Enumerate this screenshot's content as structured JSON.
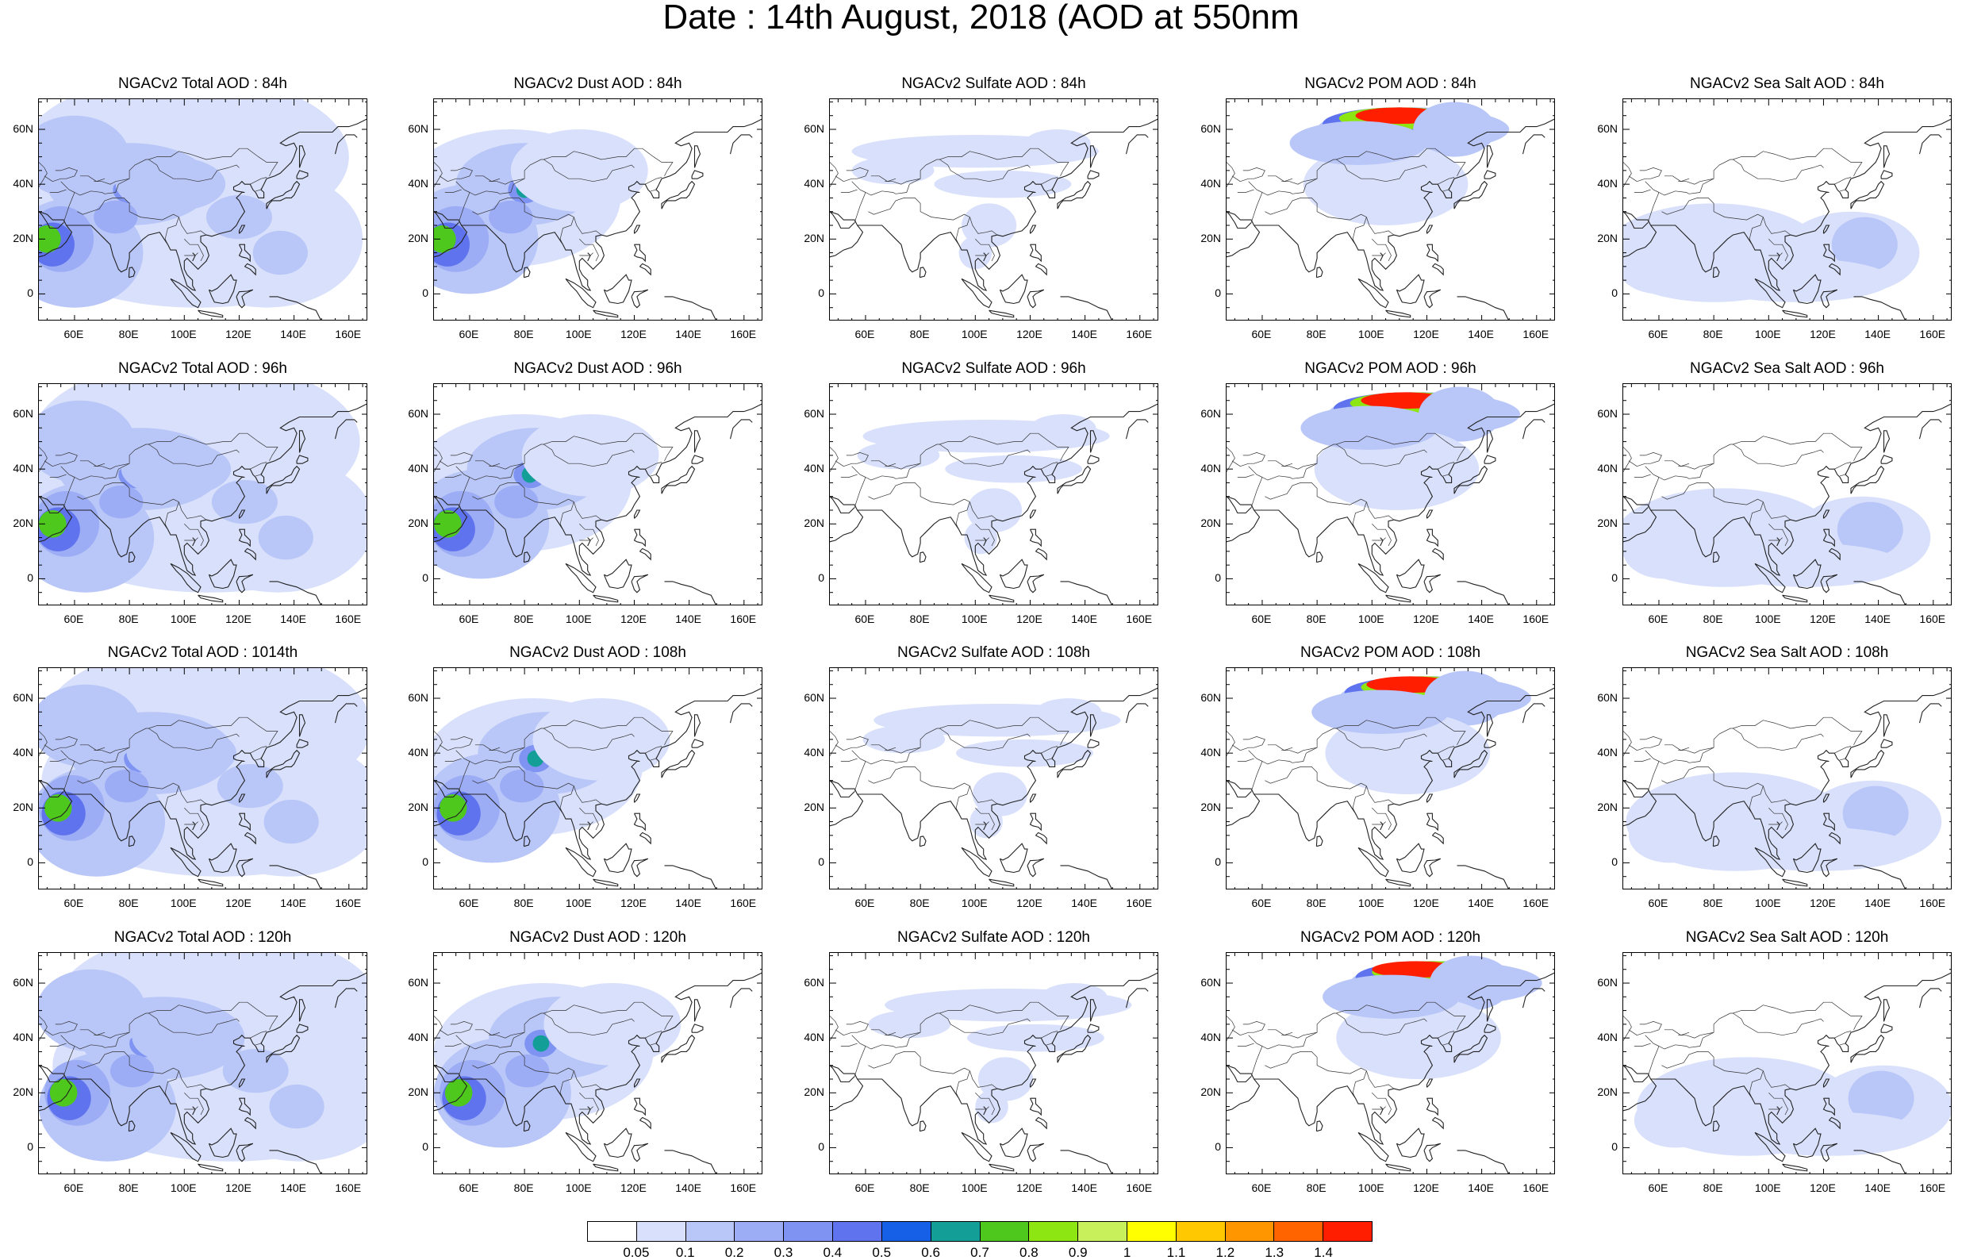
{
  "title": "Date : 14th August, 2018 (AOD at 550nm",
  "panels": [
    [
      "NGACv2 Total AOD : 84h",
      "NGACv2 Dust AOD : 84h",
      "NGACv2 Sulfate AOD : 84h",
      "NGACv2 POM AOD : 84h",
      "NGACv2 Sea Salt AOD : 84h"
    ],
    [
      "NGACv2 Total AOD : 96h",
      "NGACv2 Dust AOD : 96h",
      "NGACv2 Sulfate AOD : 96h",
      "NGACv2 POM AOD : 96h",
      "NGACv2 Sea Salt AOD : 96h"
    ],
    [
      "NGACv2 Total AOD : 1014th",
      "NGACv2 Dust AOD : 108h",
      "NGACv2 Sulfate AOD : 108h",
      "NGACv2 POM AOD : 108h",
      "NGACv2 Sea Salt AOD : 108h"
    ],
    [
      "NGACv2 Total AOD : 120h",
      "NGACv2 Dust AOD : 120h",
      "NGACv2 Sulfate AOD : 120h",
      "NGACv2 POM AOD : 120h",
      "NGACv2 Sea Salt  AOD : 120h"
    ]
  ],
  "lat_labels": [
    "60N",
    "40N",
    "20N",
    "0"
  ],
  "lon_labels": [
    "60E",
    "80E",
    "100E",
    "120E",
    "140E",
    "160E"
  ],
  "colorbar": {
    "labels": [
      "0.05",
      "0.1",
      "0.2",
      "0.3",
      "0.4",
      "0.5",
      "0.6",
      "0.7",
      "0.8",
      "0.9",
      "1",
      "1.1",
      "1.2",
      "1.3",
      "1.4"
    ],
    "colors": [
      "#ffffff",
      "#d8e0fb",
      "#b9c6f8",
      "#9cadf5",
      "#7f93f2",
      "#5f73ee",
      "#1560e6",
      "#139e97",
      "#4ec81c",
      "#8de611",
      "#c8f05a",
      "#ffff00",
      "#ffc800",
      "#ff9600",
      "#ff6400",
      "#ff1e00"
    ]
  }
}
